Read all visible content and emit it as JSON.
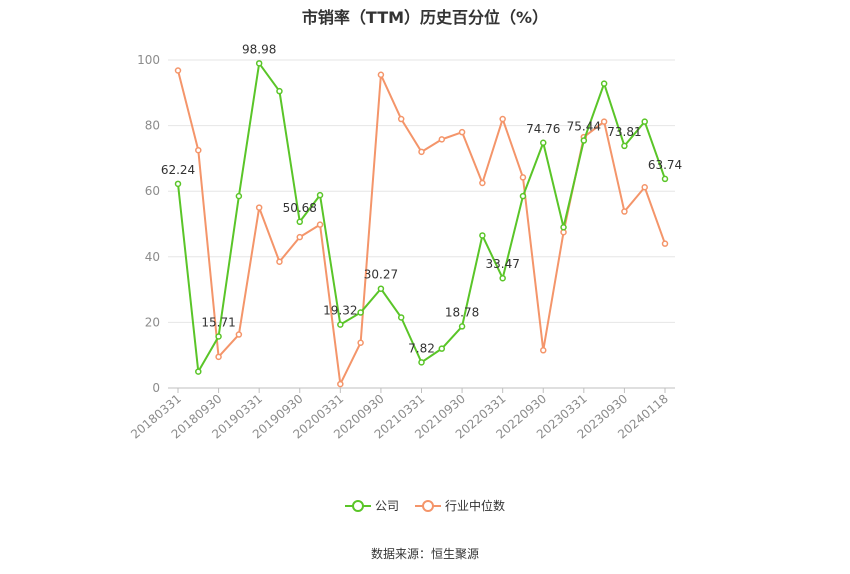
{
  "chart_data": {
    "type": "line",
    "title": "市销率（TTM）历史百分位（%）",
    "xlabel": "",
    "ylabel": "",
    "ylim": [
      0,
      100
    ],
    "yticks": [
      0,
      20,
      40,
      60,
      80,
      100
    ],
    "grid": true,
    "legend_position": "bottom",
    "x": [
      "20180331",
      "20180630",
      "20180930",
      "20181231",
      "20190331",
      "20190630",
      "20190930",
      "20191231",
      "20200331",
      "20200630",
      "20200930",
      "20201231",
      "20210331",
      "20210630",
      "20210930",
      "20211231",
      "20220331",
      "20220630",
      "20220930",
      "20221231",
      "20230331",
      "20230630",
      "20230930",
      "20231231",
      "20240118"
    ],
    "x_tick_labels": [
      "20180331",
      "20180930",
      "20190331",
      "20190930",
      "20200331",
      "20200930",
      "20210331",
      "20210930",
      "20220331",
      "20220930",
      "20230331",
      "20230930",
      "20240118"
    ],
    "series": [
      {
        "name": "公司",
        "color": "#5ac528",
        "values": [
          62.24,
          5.0,
          15.71,
          58.5,
          98.98,
          90.5,
          50.68,
          58.8,
          19.32,
          23.0,
          30.27,
          21.5,
          7.82,
          12.0,
          18.78,
          46.5,
          33.47,
          58.5,
          74.76,
          49.0,
          75.44,
          92.8,
          73.81,
          81.2,
          63.74
        ],
        "labels": {
          "0": "62.24",
          "2": "15.71",
          "4": "98.98",
          "6": "50.68",
          "8": "19.32",
          "10": "30.27",
          "12": "7.82",
          "14": "18.78",
          "16": "33.47",
          "18": "74.76",
          "20": "75.44",
          "22": "73.81",
          "24": "63.74"
        }
      },
      {
        "name": "行业中位数",
        "color": "#f4956a",
        "values": [
          96.8,
          72.5,
          9.5,
          16.3,
          55.0,
          38.5,
          46.0,
          49.8,
          1.2,
          13.8,
          95.5,
          82.0,
          72.0,
          75.8,
          78.0,
          62.5,
          82.0,
          64.2,
          11.5,
          47.5,
          76.5,
          81.2,
          53.8,
          61.2,
          44.0
        ]
      }
    ]
  },
  "source": "数据来源：恒生聚源"
}
